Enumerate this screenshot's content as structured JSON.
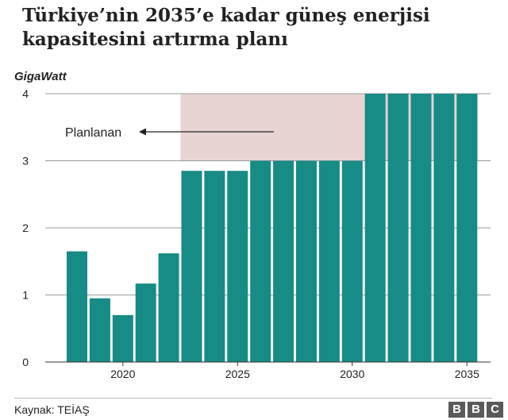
{
  "title": "Türkiye’nin 2035’e kadar güneş enerjisi kapasitesini artırma planı",
  "source": "Kaynak: TEİAŞ",
  "logo": [
    "B",
    "B",
    "C"
  ],
  "colors": {
    "bar": "#178b85",
    "planned_region": "#e9d4d4",
    "grid": "#999999",
    "text": "#222222"
  },
  "chart_data": {
    "type": "bar",
    "ylabel": "GigaWatt",
    "ylim": [
      0,
      4
    ],
    "yticks": [
      0,
      1,
      2,
      3,
      4
    ],
    "xticks": [
      2020,
      2025,
      2030,
      2035
    ],
    "x": [
      2018,
      2019,
      2020,
      2021,
      2022,
      2023,
      2024,
      2025,
      2026,
      2027,
      2028,
      2029,
      2030,
      2031,
      2032,
      2033,
      2034,
      2035
    ],
    "values": [
      1.65,
      0.95,
      0.7,
      1.17,
      1.62,
      2.85,
      2.85,
      2.85,
      3.0,
      3.0,
      3.0,
      3.0,
      3.0,
      4.0,
      4.0,
      4.0,
      4.0,
      4.0
    ],
    "planned_range": [
      2023,
      2035
    ],
    "annotation": {
      "text": "Planlanan",
      "arrow": "left"
    }
  }
}
